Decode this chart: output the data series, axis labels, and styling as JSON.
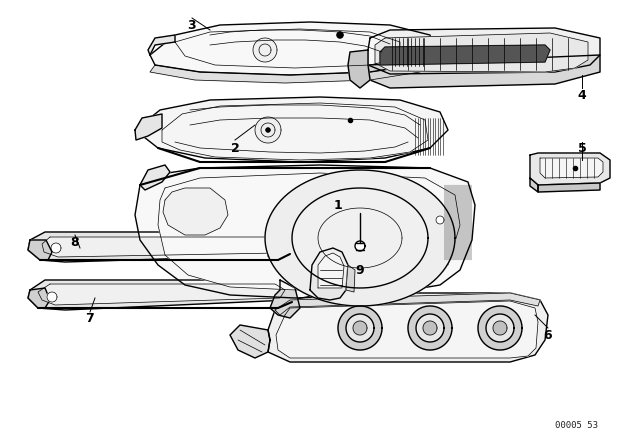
{
  "background_color": "#ffffff",
  "line_color": "#000000",
  "watermark": "00005 53",
  "fig_width": 6.4,
  "fig_height": 4.48,
  "dpi": 100,
  "lw_main": 1.0,
  "lw_thin": 0.5,
  "lw_thick": 1.5
}
